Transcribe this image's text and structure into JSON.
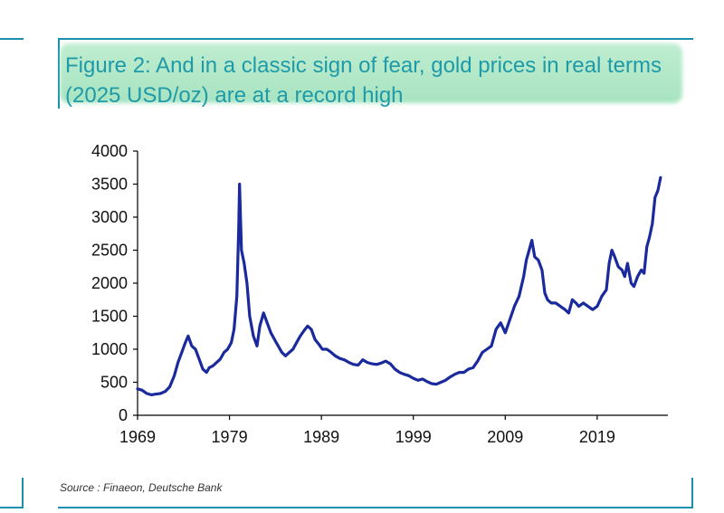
{
  "figure": {
    "title": "Figure 2: And in a classic sign of fear, gold prices in real terms (2025 USD/oz) are at a record high",
    "source": "Source : Finaeon, Deutsche Bank"
  },
  "colors": {
    "line": "#1a2a9c",
    "frame": "#1a8fb0",
    "title": "#1f9aa8",
    "highlight": "#8ddeaa"
  },
  "chart_data": {
    "type": "line",
    "title": "Figure 2: And in a classic sign of fear, gold prices in real terms (2025 USD/oz) are at a record high",
    "xlabel": "",
    "ylabel": "",
    "xlim": [
      1969,
      2026.3
    ],
    "ylim": [
      0,
      4000
    ],
    "x_ticks": [
      1969,
      1979,
      1989,
      1999,
      2009,
      2019
    ],
    "y_ticks": [
      0,
      500,
      1000,
      1500,
      2000,
      2500,
      3000,
      3500,
      4000
    ],
    "grid": false,
    "series": [
      {
        "name": "",
        "x": [
          1969.0,
          1969.5,
          1970.0,
          1970.5,
          1971.0,
          1971.5,
          1972.0,
          1972.5,
          1973.0,
          1973.4,
          1973.8,
          1974.2,
          1974.5,
          1974.9,
          1975.3,
          1975.7,
          1976.1,
          1976.5,
          1976.8,
          1977.2,
          1977.6,
          1978.0,
          1978.4,
          1978.8,
          1979.2,
          1979.5,
          1979.8,
          1980.0,
          1980.1,
          1980.3,
          1980.6,
          1980.9,
          1981.2,
          1981.6,
          1982.0,
          1982.3,
          1982.7,
          1983.1,
          1983.5,
          1983.9,
          1984.3,
          1984.7,
          1985.1,
          1985.5,
          1985.9,
          1986.3,
          1986.7,
          1987.1,
          1987.5,
          1987.9,
          1988.3,
          1988.7,
          1989.1,
          1989.6,
          1990.0,
          1990.5,
          1991.0,
          1991.5,
          1992.0,
          1992.5,
          1993.0,
          1993.5,
          1994.0,
          1994.5,
          1995.0,
          1995.5,
          1996.0,
          1996.5,
          1997.0,
          1997.5,
          1998.0,
          1998.5,
          1999.0,
          1999.5,
          2000.0,
          2000.5,
          2001.0,
          2001.5,
          2002.0,
          2002.5,
          2003.0,
          2003.5,
          2004.0,
          2004.5,
          2005.0,
          2005.5,
          2006.0,
          2006.5,
          2007.0,
          2007.5,
          2008.0,
          2008.5,
          2009.0,
          2009.5,
          2010.0,
          2010.5,
          2011.0,
          2011.3,
          2011.6,
          2011.9,
          2012.2,
          2012.6,
          2013.0,
          2013.3,
          2013.6,
          2014.0,
          2014.5,
          2015.0,
          2015.5,
          2015.9,
          2016.3,
          2016.7,
          2017.0,
          2017.5,
          2018.0,
          2018.5,
          2019.0,
          2019.5,
          2020.0,
          2020.3,
          2020.6,
          2020.9,
          2021.3,
          2021.7,
          2022.0,
          2022.3,
          2022.7,
          2023.0,
          2023.4,
          2023.8,
          2024.1,
          2024.4,
          2024.7,
          2025.0,
          2025.3,
          2025.6,
          2025.9
        ],
        "values": [
          400,
          380,
          330,
          310,
          320,
          330,
          360,
          430,
          600,
          800,
          950,
          1100,
          1200,
          1050,
          1000,
          850,
          700,
          650,
          720,
          750,
          800,
          850,
          950,
          1000,
          1100,
          1300,
          1800,
          2800,
          3500,
          2500,
          2300,
          2000,
          1500,
          1200,
          1050,
          1350,
          1550,
          1400,
          1250,
          1150,
          1050,
          950,
          900,
          950,
          1000,
          1100,
          1200,
          1280,
          1350,
          1300,
          1150,
          1080,
          1000,
          1000,
          960,
          900,
          860,
          840,
          800,
          770,
          760,
          840,
          800,
          780,
          770,
          790,
          820,
          780,
          700,
          650,
          620,
          600,
          560,
          530,
          550,
          510,
          480,
          470,
          500,
          530,
          580,
          620,
          650,
          650,
          700,
          720,
          820,
          950,
          1000,
          1050,
          1300,
          1400,
          1250,
          1450,
          1650,
          1800,
          2100,
          2350,
          2500,
          2650,
          2400,
          2350,
          2200,
          1850,
          1750,
          1700,
          1700,
          1650,
          1600,
          1550,
          1750,
          1700,
          1650,
          1700,
          1650,
          1600,
          1650,
          1800,
          1900,
          2300,
          2500,
          2400,
          2250,
          2200,
          2100,
          2300,
          2000,
          1950,
          2100,
          2200,
          2150,
          2550,
          2700,
          2900,
          3300,
          3400,
          3600
        ]
      }
    ]
  }
}
